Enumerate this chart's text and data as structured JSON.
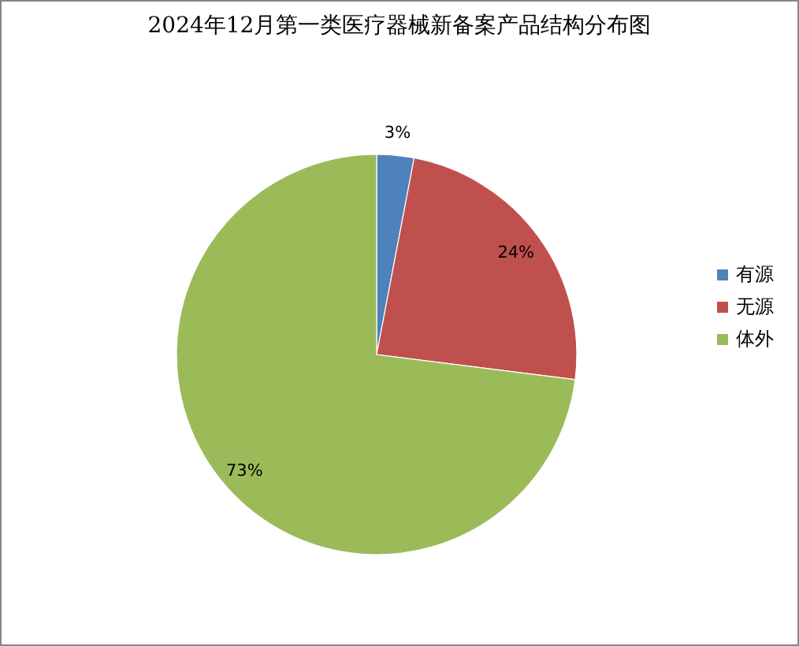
{
  "chart_data": {
    "type": "pie",
    "title": "2024年12月第一类医疗器械新备案产品结构分布图",
    "categories": [
      "有源",
      "无源",
      "体外"
    ],
    "values": [
      3,
      24,
      73
    ],
    "colors": [
      "#4f81bd",
      "#c0504d",
      "#9bbb59"
    ],
    "value_labels": [
      "3%",
      "24%",
      "73%"
    ],
    "legend": "right"
  }
}
